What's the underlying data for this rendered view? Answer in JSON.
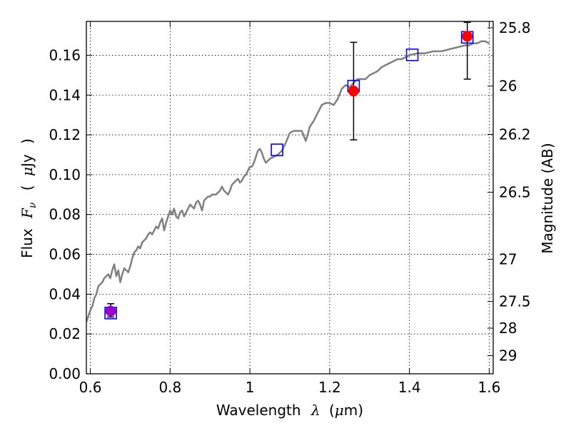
{
  "chart_data": {
    "type": "line",
    "title": "",
    "xlabel": {
      "prefix": "Wavelength",
      "symbol": "λ",
      "unit_open": "(",
      "unit_mu": "μ",
      "unit_rest": "m)"
    },
    "ylabel": {
      "prefix": "Flux",
      "symbol": "F",
      "subscript": "ν",
      "unit_open": "(",
      "unit_mu": "μ",
      "unit_rest": "Jy",
      "unit_close": ")"
    },
    "y2label": "Magnitude (AB)",
    "xlim": [
      0.59,
      1.61
    ],
    "ylim": [
      0.0,
      0.177
    ],
    "grid": true,
    "xticks": [
      {
        "value": 0.6,
        "label": "0.6"
      },
      {
        "value": 0.8,
        "label": "0.8"
      },
      {
        "value": 1.0,
        "label": "1"
      },
      {
        "value": 1.2,
        "label": "1.2"
      },
      {
        "value": 1.4,
        "label": "1.4"
      },
      {
        "value": 1.6,
        "label": "1.6"
      }
    ],
    "yticks": [
      {
        "value": 0.0,
        "label": "0.00"
      },
      {
        "value": 0.02,
        "label": "0.02"
      },
      {
        "value": 0.04,
        "label": "0.04"
      },
      {
        "value": 0.06,
        "label": "0.06"
      },
      {
        "value": 0.08,
        "label": "0.08"
      },
      {
        "value": 0.1,
        "label": "0.10"
      },
      {
        "value": 0.12,
        "label": "0.12"
      },
      {
        "value": 0.14,
        "label": "0.14"
      },
      {
        "value": 0.16,
        "label": "0.16"
      }
    ],
    "y2ticks": [
      {
        "value": 25.8,
        "label": "25.8"
      },
      {
        "value": 26.0,
        "label": "26"
      },
      {
        "value": 26.2,
        "label": "26.2"
      },
      {
        "value": 26.5,
        "label": "26.5"
      },
      {
        "value": 27.0,
        "label": "27"
      },
      {
        "value": 27.5,
        "label": "27.5"
      },
      {
        "value": 28.0,
        "label": "28"
      },
      {
        "value": 29.0,
        "label": "29"
      }
    ],
    "model_spectrum": {
      "color": "#808080",
      "points": [
        [
          0.59,
          0.026
        ],
        [
          0.6,
          0.032
        ],
        [
          0.605,
          0.034
        ],
        [
          0.61,
          0.038
        ],
        [
          0.615,
          0.04
        ],
        [
          0.62,
          0.044
        ],
        [
          0.625,
          0.045
        ],
        [
          0.63,
          0.046
        ],
        [
          0.635,
          0.048
        ],
        [
          0.64,
          0.049
        ],
        [
          0.645,
          0.05
        ],
        [
          0.65,
          0.048
        ],
        [
          0.655,
          0.052
        ],
        [
          0.66,
          0.055
        ],
        [
          0.665,
          0.049
        ],
        [
          0.67,
          0.052
        ],
        [
          0.675,
          0.046
        ],
        [
          0.68,
          0.05
        ],
        [
          0.685,
          0.053
        ],
        [
          0.69,
          0.052
        ],
        [
          0.695,
          0.051
        ],
        [
          0.7,
          0.054
        ],
        [
          0.705,
          0.058
        ],
        [
          0.71,
          0.061
        ],
        [
          0.715,
          0.062
        ],
        [
          0.72,
          0.064
        ],
        [
          0.725,
          0.063
        ],
        [
          0.73,
          0.066
        ],
        [
          0.735,
          0.067
        ],
        [
          0.74,
          0.068
        ],
        [
          0.745,
          0.07
        ],
        [
          0.75,
          0.071
        ],
        [
          0.755,
          0.07
        ],
        [
          0.76,
          0.072
        ],
        [
          0.765,
          0.074
        ],
        [
          0.77,
          0.073
        ],
        [
          0.775,
          0.076
        ],
        [
          0.78,
          0.078
        ],
        [
          0.785,
          0.072
        ],
        [
          0.79,
          0.076
        ],
        [
          0.795,
          0.079
        ],
        [
          0.8,
          0.082
        ],
        [
          0.805,
          0.08
        ],
        [
          0.81,
          0.083
        ],
        [
          0.815,
          0.079
        ],
        [
          0.82,
          0.078
        ],
        [
          0.825,
          0.081
        ],
        [
          0.83,
          0.082
        ],
        [
          0.835,
          0.079
        ],
        [
          0.84,
          0.081
        ],
        [
          0.845,
          0.083
        ],
        [
          0.85,
          0.085
        ],
        [
          0.855,
          0.084
        ],
        [
          0.86,
          0.083
        ],
        [
          0.865,
          0.086
        ],
        [
          0.87,
          0.087
        ],
        [
          0.875,
          0.085
        ],
        [
          0.88,
          0.082
        ],
        [
          0.885,
          0.087
        ],
        [
          0.89,
          0.088
        ],
        [
          0.895,
          0.089
        ],
        [
          0.9,
          0.089
        ],
        [
          0.905,
          0.09
        ],
        [
          0.91,
          0.09
        ],
        [
          0.915,
          0.09
        ],
        [
          0.92,
          0.091
        ],
        [
          0.925,
          0.092
        ],
        [
          0.93,
          0.094
        ],
        [
          0.935,
          0.092
        ],
        [
          0.94,
          0.091
        ],
        [
          0.945,
          0.09
        ],
        [
          0.95,
          0.092
        ],
        [
          0.955,
          0.095
        ],
        [
          0.96,
          0.096
        ],
        [
          0.965,
          0.097
        ],
        [
          0.97,
          0.098
        ],
        [
          0.975,
          0.096
        ],
        [
          0.98,
          0.097
        ],
        [
          0.985,
          0.099
        ],
        [
          0.99,
          0.1
        ],
        [
          0.995,
          0.102
        ],
        [
          1.0,
          0.104
        ],
        [
          1.005,
          0.104
        ],
        [
          1.01,
          0.106
        ],
        [
          1.015,
          0.109
        ],
        [
          1.02,
          0.112
        ],
        [
          1.025,
          0.113
        ],
        [
          1.03,
          0.111
        ],
        [
          1.035,
          0.108
        ],
        [
          1.04,
          0.106
        ],
        [
          1.05,
          0.108
        ],
        [
          1.06,
          0.109
        ],
        [
          1.07,
          0.11
        ],
        [
          1.08,
          0.112
        ],
        [
          1.09,
          0.116
        ],
        [
          1.1,
          0.121
        ],
        [
          1.11,
          0.122
        ],
        [
          1.12,
          0.122
        ],
        [
          1.13,
          0.122
        ],
        [
          1.14,
          0.117
        ],
        [
          1.145,
          0.12
        ],
        [
          1.15,
          0.124
        ],
        [
          1.16,
          0.127
        ],
        [
          1.17,
          0.131
        ],
        [
          1.18,
          0.135
        ],
        [
          1.19,
          0.136
        ],
        [
          1.2,
          0.136
        ],
        [
          1.21,
          0.135
        ],
        [
          1.22,
          0.138
        ],
        [
          1.23,
          0.143
        ],
        [
          1.24,
          0.145
        ],
        [
          1.25,
          0.144
        ],
        [
          1.26,
          0.146
        ],
        [
          1.27,
          0.148
        ],
        [
          1.28,
          0.148
        ],
        [
          1.29,
          0.148
        ],
        [
          1.3,
          0.15
        ],
        [
          1.31,
          0.151
        ],
        [
          1.32,
          0.152
        ],
        [
          1.33,
          0.154
        ],
        [
          1.34,
          0.155
        ],
        [
          1.35,
          0.156
        ],
        [
          1.36,
          0.157
        ],
        [
          1.37,
          0.158
        ],
        [
          1.38,
          0.158
        ],
        [
          1.39,
          0.159
        ],
        [
          1.4,
          0.16
        ],
        [
          1.42,
          0.161
        ],
        [
          1.44,
          0.161
        ],
        [
          1.46,
          0.162
        ],
        [
          1.48,
          0.162
        ],
        [
          1.5,
          0.163
        ],
        [
          1.52,
          0.164
        ],
        [
          1.54,
          0.165
        ],
        [
          1.55,
          0.165
        ],
        [
          1.56,
          0.166
        ],
        [
          1.57,
          0.166
        ],
        [
          1.58,
          0.167
        ],
        [
          1.59,
          0.167
        ],
        [
          1.6,
          0.166
        ]
      ]
    },
    "model_photometry": {
      "color": "#0000ff",
      "marker": "square",
      "points": [
        {
          "x": 0.651,
          "y": 0.0305
        },
        {
          "x": 1.068,
          "y": 0.1125
        },
        {
          "x": 1.26,
          "y": 0.1445
        },
        {
          "x": 1.407,
          "y": 0.1602
        },
        {
          "x": 1.545,
          "y": 0.169
        }
      ]
    },
    "observed": {
      "color": "#ff0000",
      "marker": "circle",
      "points": [
        {
          "x": 0.651,
          "y": 0.0315,
          "yerr_low": 0.0285,
          "yerr_high": 0.0352,
          "color": "#9900cc"
        },
        {
          "x": 1.26,
          "y": 0.142,
          "yerr_low": 0.1175,
          "yerr_high": 0.1665,
          "color": "#ff0000"
        },
        {
          "x": 1.545,
          "y": 0.1695,
          "yerr_low": 0.148,
          "yerr_high": 0.1765,
          "color": "#ff0000"
        }
      ]
    }
  }
}
